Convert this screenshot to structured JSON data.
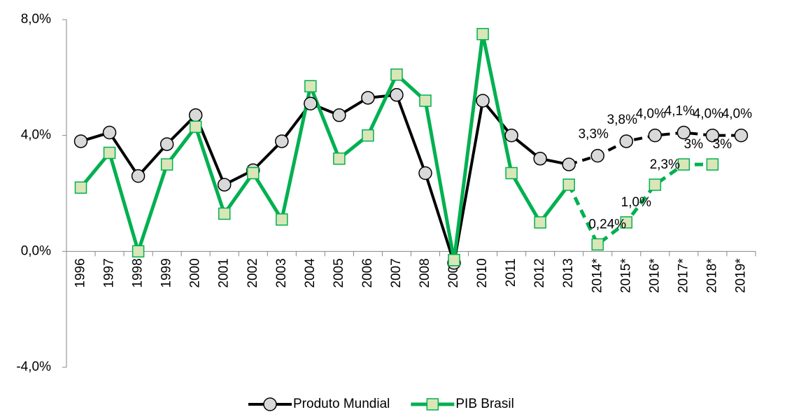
{
  "chart_data": {
    "type": "line",
    "categories": [
      "1996",
      "1997",
      "1998",
      "1999",
      "2000",
      "2001",
      "2002",
      "2003",
      "2004",
      "2005",
      "2006",
      "2007",
      "2008",
      "2009",
      "2010",
      "2011",
      "2012",
      "2013",
      "2014*",
      "2015*",
      "2016*",
      "2017*",
      "2018*",
      "2019*"
    ],
    "dash_from_category": "2013",
    "series": [
      {
        "name": "Produto Mundial",
        "color": "#000000",
        "marker": "circle",
        "marker_fill": "#d9d9d9",
        "values": [
          3.8,
          4.1,
          2.6,
          3.7,
          4.7,
          2.3,
          2.8,
          3.8,
          5.1,
          4.7,
          5.3,
          5.4,
          2.7,
          -0.4,
          5.2,
          4.0,
          3.2,
          3.0,
          3.3,
          3.8,
          4.0,
          4.1,
          4.0,
          4.0
        ],
        "value_labels": [
          null,
          null,
          null,
          null,
          null,
          null,
          null,
          null,
          null,
          null,
          null,
          null,
          null,
          null,
          null,
          null,
          null,
          null,
          "3,3%",
          "3,8%",
          "4,0%",
          "4,1%",
          "4,0%",
          "4,0%"
        ]
      },
      {
        "name": "PIB Brasil",
        "color": "#00b050",
        "marker": "square",
        "marker_fill": "#d8e6b8",
        "values": [
          2.2,
          3.4,
          0.0,
          3.0,
          4.3,
          1.3,
          2.7,
          1.1,
          5.7,
          3.2,
          4.0,
          6.1,
          5.2,
          -0.3,
          7.5,
          2.7,
          1.0,
          2.3,
          0.24,
          1.0,
          2.3,
          3,
          3,
          null
        ],
        "value_labels": [
          null,
          null,
          null,
          null,
          null,
          null,
          null,
          null,
          null,
          null,
          null,
          null,
          null,
          null,
          null,
          null,
          null,
          null,
          "0,24%",
          "1,0%",
          "2,3%",
          "3%",
          "3%",
          null
        ]
      }
    ],
    "ylim": [
      -4,
      8
    ],
    "yticks": [
      {
        "value": -4,
        "label": "-4,0%"
      },
      {
        "value": 0,
        "label": "0,0%"
      },
      {
        "value": 4,
        "label": "4,0%"
      },
      {
        "value": 8,
        "label": "8,0%"
      }
    ],
    "grid": false,
    "legend": "bottom"
  }
}
